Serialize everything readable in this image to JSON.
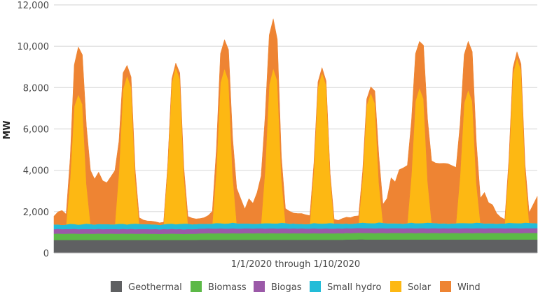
{
  "chart_data": {
    "type": "area",
    "stacked": true,
    "title": "",
    "xlabel": "1/1/2020 through 1/10/2020",
    "ylabel": "MW",
    "ylim": [
      0,
      12000
    ],
    "yticks": [
      "0",
      "2,000",
      "4,000",
      "6,000",
      "8,000",
      "10,000",
      "12,000"
    ],
    "ytick_values": [
      0,
      2000,
      4000,
      6000,
      8000,
      10000,
      12000
    ],
    "grid": true,
    "legend_position": "bottom",
    "x_range": [
      "1/1/2020",
      "1/10/2020"
    ],
    "series": [
      {
        "name": "Geothermal",
        "color": "#5f6062",
        "values": [
          630,
          630,
          630,
          630,
          630,
          630,
          630,
          630,
          630,
          630,
          630,
          630,
          630,
          630,
          630,
          630,
          630,
          630,
          630,
          630,
          630,
          630,
          630,
          630,
          630,
          630,
          630,
          630,
          630,
          630,
          630,
          630,
          630,
          630,
          630,
          630,
          640,
          640,
          640,
          640,
          640,
          640,
          640,
          640,
          640,
          640,
          640,
          640,
          640,
          640,
          640,
          640,
          640,
          640,
          640,
          640,
          640,
          640,
          640,
          640,
          640,
          640,
          640,
          640,
          640,
          640,
          640,
          640,
          640,
          640,
          640,
          640,
          650,
          650,
          650,
          660,
          660,
          650,
          650,
          650,
          650,
          650,
          650,
          650,
          650,
          650,
          650,
          650,
          650,
          650,
          650,
          650,
          650,
          650,
          650,
          650,
          650,
          650,
          650,
          650,
          650,
          650,
          650,
          650,
          650,
          650,
          650,
          650,
          650,
          650,
          650,
          650,
          650,
          650,
          650,
          650,
          650,
          650,
          650,
          650
        ]
      },
      {
        "name": "Biomass",
        "color": "#5cb947",
        "values": [
          300,
          310,
          300,
          300,
          310,
          310,
          300,
          300,
          310,
          300,
          300,
          310,
          300,
          300,
          310,
          300,
          300,
          310,
          300,
          310,
          300,
          300,
          310,
          300,
          300,
          300,
          290,
          300,
          300,
          310,
          300,
          300,
          290,
          300,
          300,
          300,
          310,
          310,
          320,
          310,
          310,
          320,
          310,
          310,
          320,
          310,
          310,
          320,
          320,
          310,
          320,
          320,
          310,
          320,
          320,
          310,
          320,
          320,
          310,
          320,
          310,
          320,
          310,
          310,
          320,
          310,
          310,
          320,
          310,
          310,
          320,
          310,
          320,
          310,
          320,
          320,
          310,
          320,
          320,
          310,
          320,
          320,
          310,
          320,
          320,
          320,
          310,
          320,
          320,
          310,
          320,
          320,
          310,
          320,
          320,
          310,
          320,
          310,
          320,
          320,
          310,
          320,
          320,
          310,
          320,
          320,
          310,
          320,
          320,
          320,
          320,
          310,
          320,
          320,
          320,
          310,
          320,
          320,
          320,
          320
        ]
      },
      {
        "name": "Biogas",
        "color": "#9b59a8",
        "values": [
          220,
          230,
          220,
          230,
          220,
          230,
          220,
          230,
          220,
          230,
          220,
          230,
          220,
          230,
          220,
          230,
          220,
          230,
          220,
          230,
          220,
          230,
          220,
          230,
          220,
          230,
          220,
          230,
          220,
          230,
          220,
          230,
          220,
          230,
          220,
          230,
          230,
          230,
          230,
          230,
          230,
          230,
          230,
          230,
          230,
          230,
          230,
          230,
          230,
          230,
          230,
          230,
          230,
          230,
          230,
          230,
          230,
          230,
          230,
          230,
          230,
          230,
          230,
          230,
          230,
          230,
          230,
          230,
          230,
          230,
          230,
          230,
          230,
          230,
          230,
          230,
          230,
          230,
          230,
          230,
          230,
          230,
          230,
          230,
          230,
          230,
          230,
          230,
          230,
          230,
          230,
          230,
          230,
          230,
          230,
          230,
          230,
          230,
          230,
          230,
          230,
          230,
          230,
          230,
          230,
          230,
          230,
          230,
          230,
          230,
          230,
          230,
          230,
          230,
          230,
          230,
          230,
          230,
          230,
          230
        ]
      },
      {
        "name": "Small hydro",
        "color": "#22bcd8",
        "values": [
          230,
          220,
          210,
          220,
          250,
          230,
          220,
          230,
          260,
          240,
          230,
          240,
          250,
          240,
          230,
          230,
          260,
          240,
          230,
          240,
          270,
          250,
          240,
          240,
          240,
          230,
          220,
          230,
          260,
          250,
          240,
          250,
          280,
          260,
          240,
          240,
          240,
          230,
          230,
          240,
          270,
          250,
          240,
          250,
          280,
          260,
          250,
          240,
          240,
          230,
          230,
          240,
          260,
          250,
          240,
          250,
          270,
          260,
          240,
          240,
          230,
          220,
          220,
          230,
          260,
          250,
          240,
          240,
          270,
          250,
          240,
          240,
          230,
          220,
          230,
          240,
          270,
          250,
          240,
          250,
          280,
          260,
          250,
          240,
          240,
          230,
          230,
          240,
          270,
          250,
          240,
          250,
          280,
          260,
          250,
          240,
          240,
          230,
          230,
          240,
          260,
          250,
          240,
          250,
          270,
          260,
          240,
          240,
          230,
          220,
          230,
          240,
          260,
          250,
          240,
          250,
          270,
          260,
          250,
          240
        ]
      },
      {
        "name": "Solar",
        "color": "#fdb813",
        "values": [
          0,
          0,
          0,
          0,
          2200,
          5700,
          6300,
          5800,
          1900,
          0,
          0,
          0,
          0,
          0,
          0,
          0,
          2500,
          6500,
          7200,
          6600,
          2200,
          0,
          0,
          0,
          0,
          0,
          0,
          0,
          2700,
          6800,
          7600,
          7000,
          2300,
          0,
          0,
          0,
          0,
          0,
          0,
          0,
          2600,
          6800,
          7500,
          6900,
          2300,
          0,
          0,
          0,
          0,
          0,
          0,
          0,
          2600,
          6700,
          7500,
          6900,
          2200,
          0,
          0,
          0,
          0,
          0,
          0,
          0,
          2600,
          6600,
          7300,
          6700,
          2200,
          0,
          0,
          0,
          0,
          0,
          0,
          0,
          2200,
          5700,
          6300,
          5800,
          1900,
          0,
          0,
          0,
          0,
          0,
          0,
          0,
          2300,
          5900,
          6550,
          6000,
          2000,
          0,
          0,
          0,
          0,
          0,
          0,
          0,
          2300,
          5800,
          6450,
          5900,
          1900,
          0,
          0,
          0,
          0,
          0,
          0,
          0,
          2800,
          7200,
          8000,
          7400,
          2400,
          0,
          0,
          0
        ]
      },
      {
        "name": "Wind",
        "color": "#ee8433",
        "values": [
          400,
          600,
          700,
          500,
          1000,
          2000,
          2300,
          2400,
          2800,
          2600,
          2200,
          2500,
          2100,
          2000,
          2300,
          2600,
          1500,
          800,
          500,
          500,
          400,
          300,
          200,
          150,
          150,
          120,
          100,
          100,
          150,
          200,
          200,
          300,
          400,
          350,
          300,
          250,
          250,
          300,
          400,
          600,
          1000,
          1400,
          1400,
          1500,
          1800,
          1700,
          1200,
          700,
          1200,
          1000,
          1500,
          2300,
          2600,
          2400,
          2400,
          2000,
          1000,
          700,
          600,
          500,
          500,
          500,
          450,
          400,
          300,
          250,
          250,
          200,
          200,
          200,
          150,
          250,
          300,
          300,
          350,
          350,
          300,
          300,
          300,
          600,
          1300,
          900,
          1200,
          2200,
          2000,
          2600,
          2700,
          2800,
          2600,
          2300,
          2250,
          2600,
          3000,
          3000,
          2900,
          2900,
          2900,
          2900,
          2800,
          2700,
          2500,
          2350,
          2350,
          2400,
          2000,
          1200,
          1500,
          1000,
          900,
          500,
          300,
          200,
          250,
          300,
          300,
          300,
          400,
          500,
          900,
          1300
        ]
      }
    ]
  }
}
